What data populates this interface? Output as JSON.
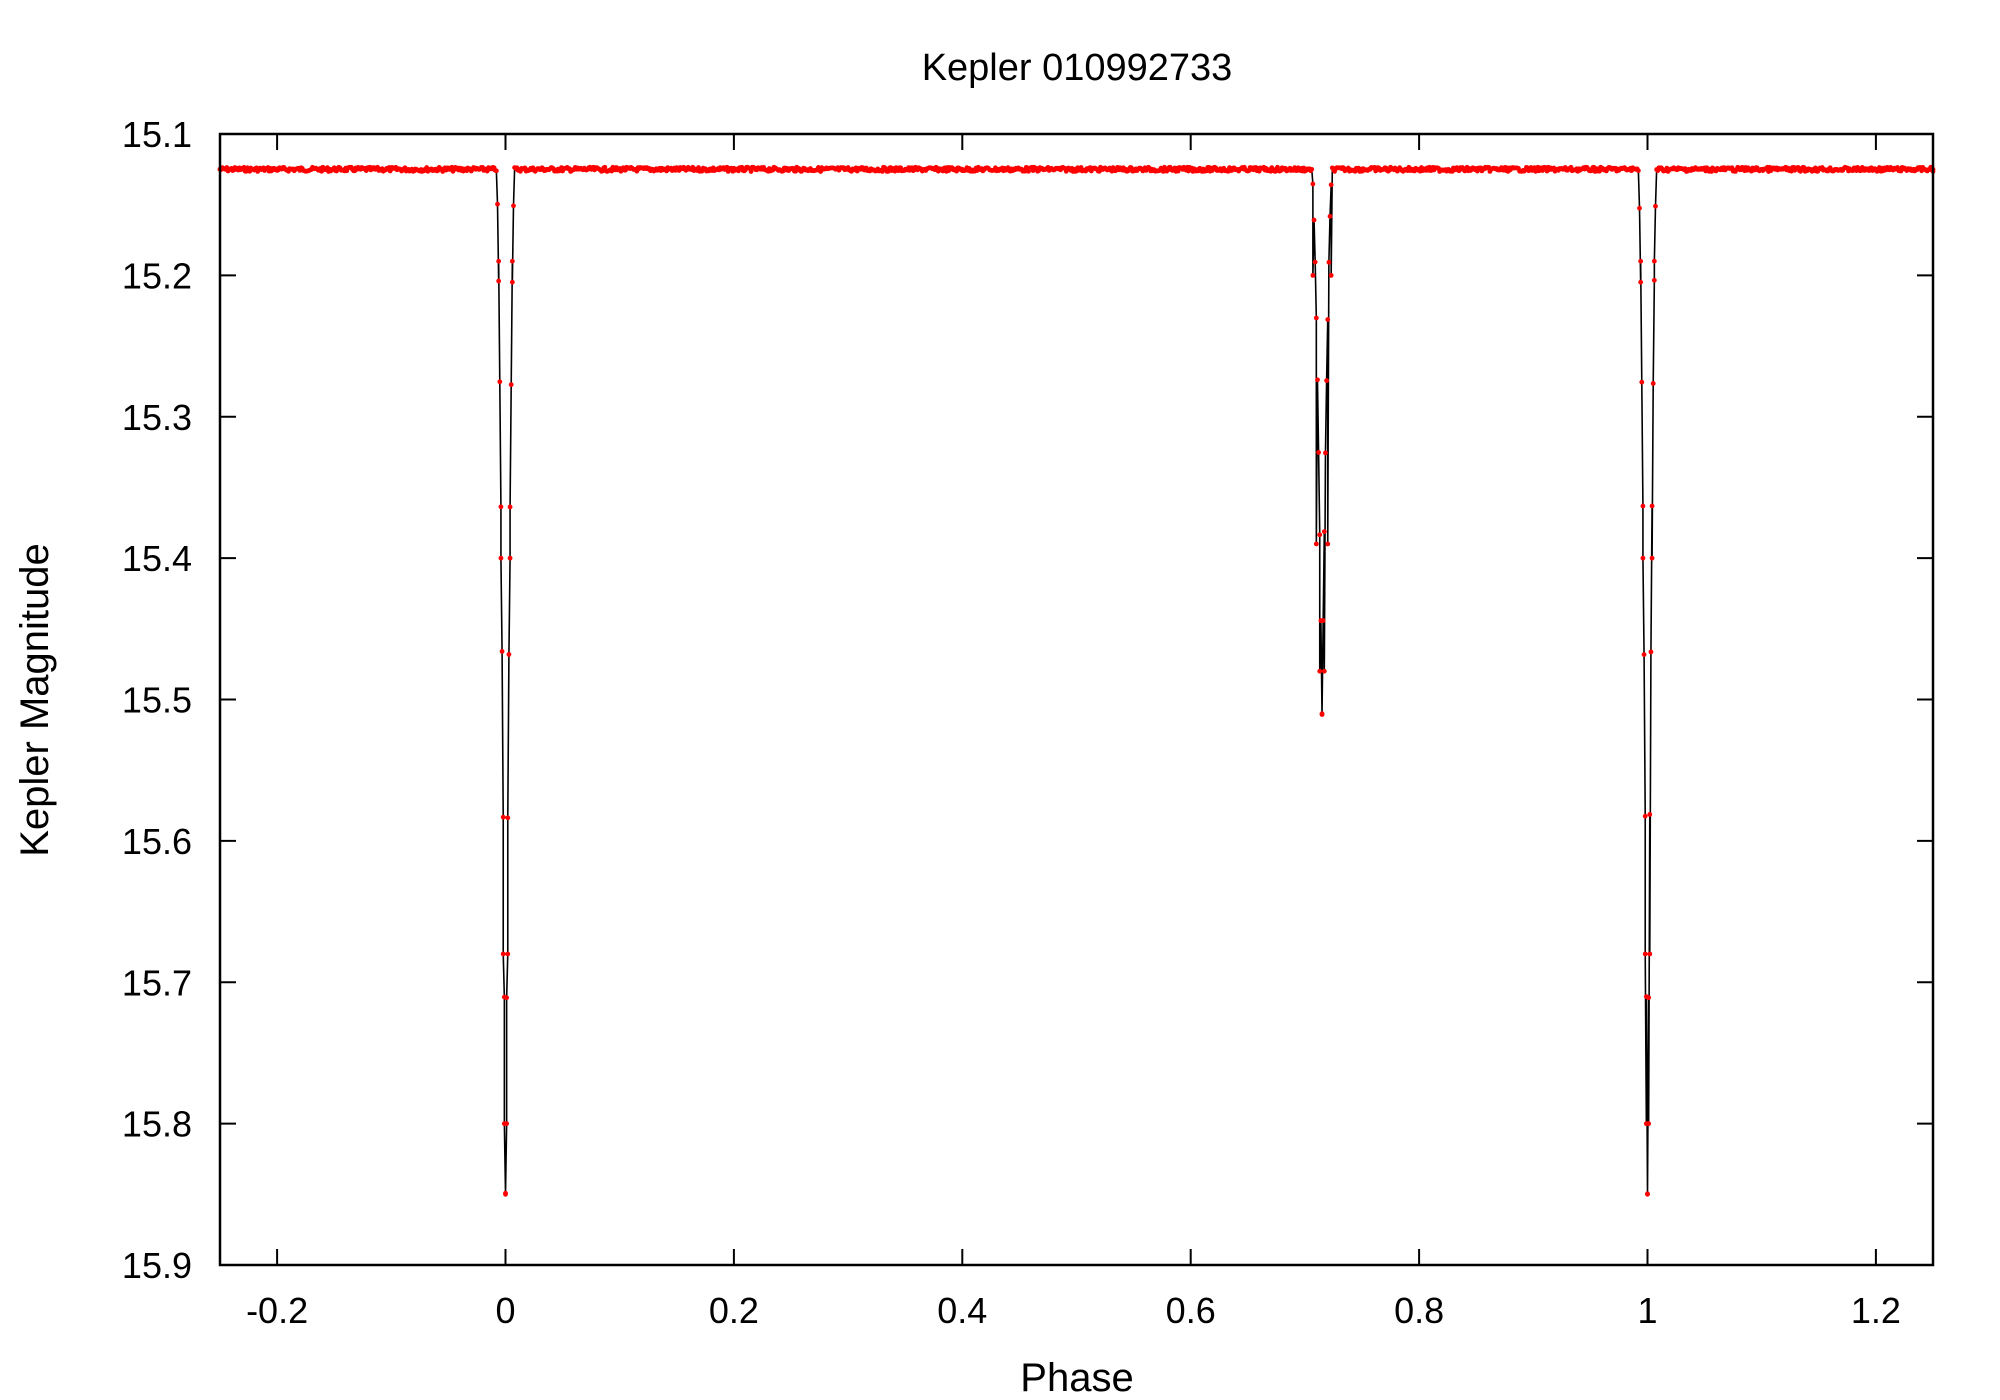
{
  "chart_data": {
    "type": "line",
    "title": "Kepler 010992733",
    "xlabel": "Phase",
    "ylabel": "Kepler Magnitude",
    "xlim": [
      -0.25,
      1.25
    ],
    "ylim": [
      15.9,
      15.1
    ],
    "y_inverted": true,
    "grid": false,
    "legend": "none",
    "xticks": [
      "-0.2",
      "0",
      "0.2",
      "0.4",
      "0.6",
      "0.8",
      "1",
      "1.2"
    ],
    "yticks": [
      "15.1",
      "15.2",
      "15.3",
      "15.4",
      "15.5",
      "15.6",
      "15.7",
      "15.8",
      "15.9"
    ],
    "series": [
      {
        "style": "red points with black connecting line",
        "line_color": "#000000",
        "marker_color": "#ff0000",
        "baseline": 15.125,
        "eclipses": [
          {
            "center": 0.0,
            "depth_mag": 15.85,
            "half_width": 0.008
          },
          {
            "center": 0.715,
            "depth_mag": 15.51,
            "half_width": 0.009
          },
          {
            "center": 1.0,
            "depth_mag": 15.85,
            "half_width": 0.008
          }
        ],
        "x": [
          -0.25,
          -0.2,
          -0.1,
          -0.01,
          -0.006,
          -0.004,
          -0.002,
          -0.001,
          0.0,
          0.001,
          0.002,
          0.004,
          0.006,
          0.01,
          0.1,
          0.2,
          0.3,
          0.4,
          0.5,
          0.6,
          0.7,
          0.704,
          0.707,
          0.71,
          0.713,
          0.715,
          0.717,
          0.72,
          0.723,
          0.726,
          0.8,
          0.9,
          0.99,
          0.994,
          0.996,
          0.998,
          0.999,
          1.0,
          1.001,
          1.002,
          1.004,
          1.006,
          1.01,
          1.1,
          1.2,
          1.25
        ],
        "y": [
          15.125,
          15.125,
          15.125,
          15.125,
          15.19,
          15.4,
          15.68,
          15.8,
          15.85,
          15.8,
          15.68,
          15.4,
          15.19,
          15.125,
          15.125,
          15.125,
          15.125,
          15.125,
          15.125,
          15.125,
          15.125,
          15.125,
          15.2,
          15.39,
          15.48,
          15.51,
          15.48,
          15.39,
          15.2,
          15.125,
          15.125,
          15.125,
          15.125,
          15.19,
          15.4,
          15.68,
          15.8,
          15.85,
          15.8,
          15.68,
          15.4,
          15.19,
          15.125,
          15.125,
          15.125,
          15.125
        ]
      }
    ]
  }
}
